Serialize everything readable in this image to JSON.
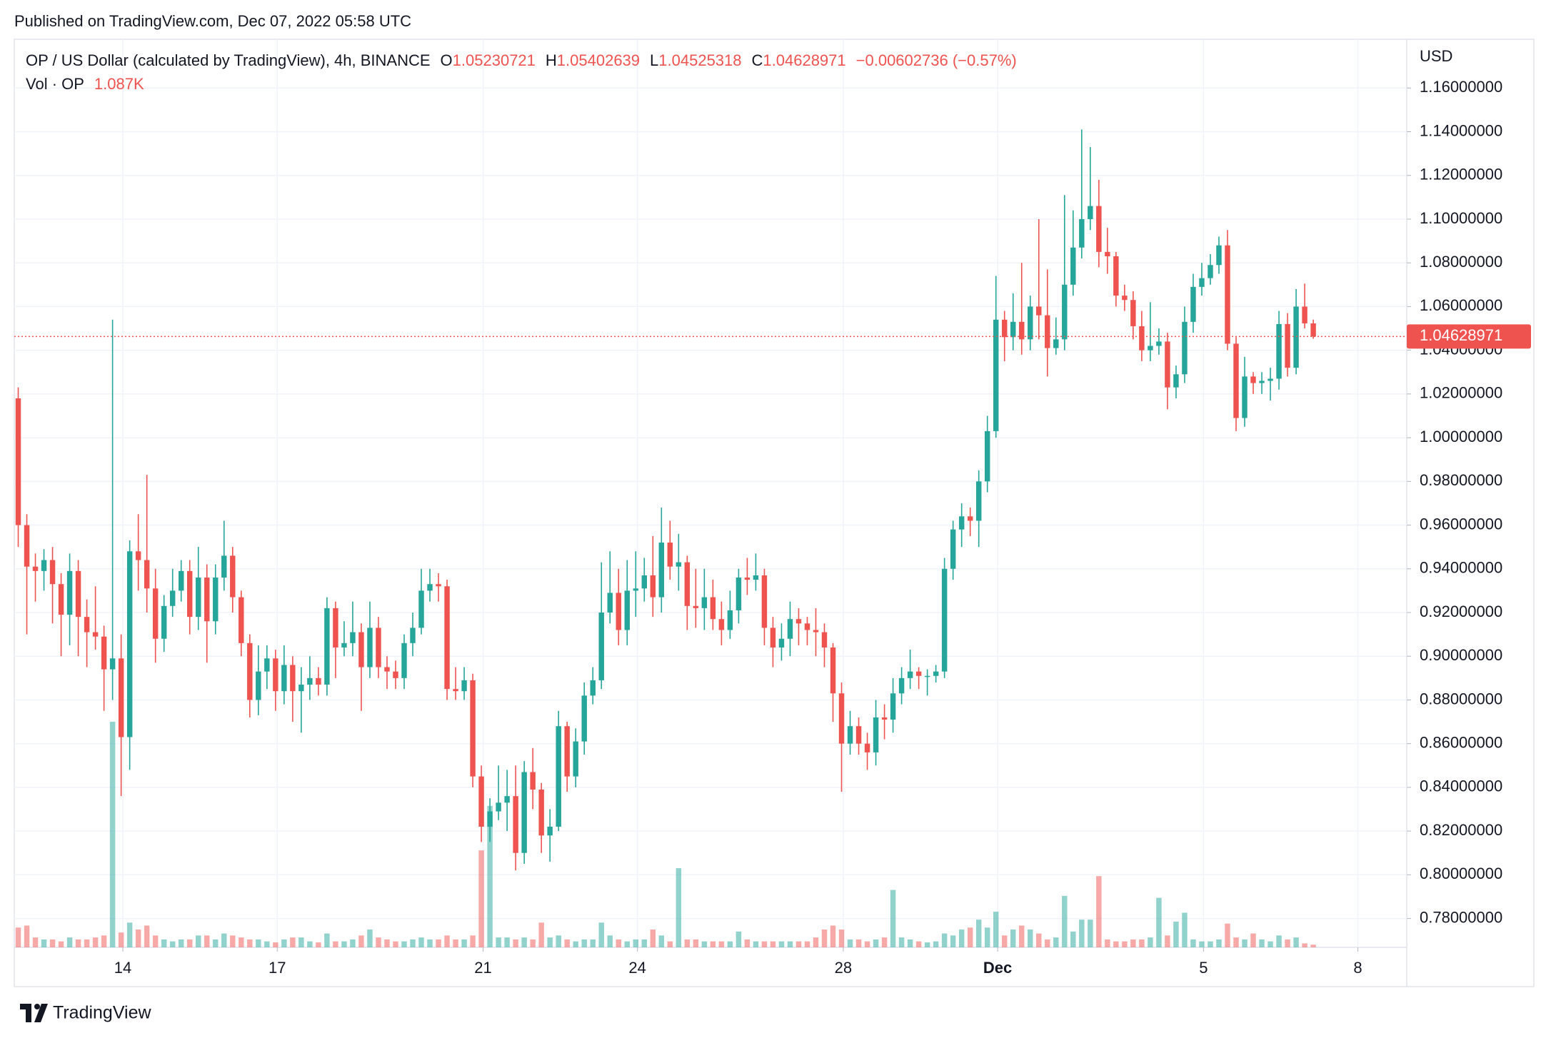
{
  "chart_data": {
    "type": "candlestick",
    "published": "Published on TradingView.com, Dec 07, 2022 05:58 UTC",
    "title": "OP / US Dollar (calculated by TradingView), 4h, BINANCE",
    "legend_keys": [
      "O",
      "H",
      "L",
      "C"
    ],
    "change_label": "−0.00602736 (−0.57%)",
    "volume_name": "Vol · OP",
    "volume_last_label": "1.087K",
    "currency": "USD",
    "brand": "TradingView",
    "up_color": "#26a69a",
    "down_color": "#ef5350",
    "grid": true,
    "xlim": [
      -0.46,
      161.9
    ],
    "xticks": [
      {
        "value": 12.2,
        "label": "14"
      },
      {
        "value": 30.2,
        "label": "17"
      },
      {
        "value": 54.2,
        "label": "21"
      },
      {
        "value": 72.2,
        "label": "24"
      },
      {
        "value": 96.2,
        "label": "28"
      },
      {
        "value": 114.2,
        "label": "Dec"
      },
      {
        "value": 138.2,
        "label": "5"
      },
      {
        "value": 156.2,
        "label": "8"
      }
    ],
    "ylim": [
      0.7668,
      1.1823
    ],
    "yticks": [
      {
        "value": 0.78,
        "label": "0.78000000"
      },
      {
        "value": 0.8,
        "label": "0.80000000"
      },
      {
        "value": 0.82,
        "label": "0.82000000"
      },
      {
        "value": 0.84,
        "label": "0.84000000"
      },
      {
        "value": 0.86,
        "label": "0.86000000"
      },
      {
        "value": 0.88,
        "label": "0.88000000"
      },
      {
        "value": 0.9,
        "label": "0.90000000"
      },
      {
        "value": 0.92,
        "label": "0.92000000"
      },
      {
        "value": 0.94,
        "label": "0.94000000"
      },
      {
        "value": 0.96,
        "label": "0.96000000"
      },
      {
        "value": 0.98,
        "label": "0.98000000"
      },
      {
        "value": 1.0,
        "label": "1.00000000"
      },
      {
        "value": 1.02,
        "label": "1.02000000"
      },
      {
        "value": 1.04,
        "label": "1.04000000"
      },
      {
        "value": 1.06,
        "label": "1.06000000"
      },
      {
        "value": 1.08,
        "label": "1.08000000"
      },
      {
        "value": 1.1,
        "label": "1.10000000"
      },
      {
        "value": 1.12,
        "label": "1.12000000"
      },
      {
        "value": 1.14,
        "label": "1.14000000"
      },
      {
        "value": 1.16,
        "label": "1.16000000"
      }
    ],
    "open": [
      1.018,
      0.96,
      0.941,
      0.939,
      0.944,
      0.933,
      0.919,
      0.939,
      0.918,
      0.911,
      0.909,
      0.894,
      0.899,
      0.863,
      0.948,
      0.944,
      0.931,
      0.908,
      0.923,
      0.93,
      0.939,
      0.918,
      0.936,
      0.916,
      0.936,
      0.946,
      0.927,
      0.906,
      0.88,
      0.893,
      0.899,
      0.884,
      0.896,
      0.884,
      0.887,
      0.89,
      0.887,
      0.922,
      0.904,
      0.906,
      0.911,
      0.895,
      0.913,
      0.895,
      0.893,
      0.89,
      0.906,
      0.913,
      0.93,
      0.933,
      0.932,
      0.885,
      0.884,
      0.889,
      0.845,
      0.822,
      0.829,
      0.833,
      0.836,
      0.81,
      0.847,
      0.839,
      0.818,
      0.822,
      0.868,
      0.845,
      0.861,
      0.882,
      0.889,
      0.92,
      0.929,
      0.912,
      0.93,
      0.931,
      0.937,
      0.927,
      0.952,
      0.941,
      0.943,
      0.923,
      0.922,
      0.927,
      0.917,
      0.912,
      0.921,
      0.936,
      0.935,
      0.937,
      0.913,
      0.904,
      0.908,
      0.917,
      0.915,
      0.912,
      0.911,
      0.904,
      0.883,
      0.86,
      0.868,
      0.86,
      0.856,
      0.872,
      0.871,
      0.883,
      0.89,
      0.893,
      0.891,
      0.891,
      0.893,
      0.94,
      0.958,
      0.964,
      0.962,
      0.98,
      1.003,
      1.054,
      1.046,
      1.053,
      1.045,
      1.06,
      1.056,
      1.041,
      1.045,
      1.07,
      1.087,
      1.1,
      1.106,
      1.085,
      1.083,
      1.065,
      1.063,
      1.051,
      1.04,
      1.042,
      1.044,
      1.023,
      1.029,
      1.053,
      1.069,
      1.073,
      1.079,
      1.088,
      1.043,
      1.009,
      1.028,
      1.025,
      1.026,
      1.027,
      1.052,
      1.032,
      1.06,
      1.05230721
    ],
    "high": [
      1.023,
      0.965,
      0.947,
      0.949,
      0.95,
      0.938,
      0.947,
      0.944,
      0.926,
      0.932,
      0.914,
      1.054,
      0.91,
      0.953,
      0.965,
      0.983,
      0.94,
      0.928,
      0.94,
      0.944,
      0.944,
      0.95,
      0.942,
      0.942,
      0.962,
      0.95,
      0.93,
      0.91,
      0.905,
      0.905,
      0.903,
      0.905,
      0.9,
      0.895,
      0.9,
      0.895,
      0.927,
      0.925,
      0.916,
      0.925,
      0.915,
      0.925,
      0.918,
      0.9,
      0.898,
      0.91,
      0.92,
      0.94,
      0.94,
      0.938,
      0.935,
      0.895,
      0.895,
      0.892,
      0.85,
      0.835,
      0.85,
      0.848,
      0.85,
      0.852,
      0.858,
      0.842,
      0.83,
      0.875,
      0.87,
      0.867,
      0.888,
      0.895,
      0.943,
      0.948,
      0.94,
      0.944,
      0.948,
      0.945,
      0.955,
      0.968,
      0.962,
      0.956,
      0.946,
      0.94,
      0.94,
      0.935,
      0.925,
      0.93,
      0.94,
      0.945,
      0.947,
      0.94,
      0.918,
      0.915,
      0.925,
      0.922,
      0.918,
      0.922,
      0.915,
      0.906,
      0.888,
      0.875,
      0.872,
      0.865,
      0.88,
      0.878,
      0.89,
      0.895,
      0.903,
      0.895,
      0.894,
      0.896,
      0.945,
      0.962,
      0.97,
      0.968,
      0.985,
      1.01,
      1.074,
      1.058,
      1.066,
      1.08,
      1.065,
      1.1,
      1.077,
      1.055,
      1.111,
      1.104,
      1.141,
      1.133,
      1.118,
      1.096,
      1.085,
      1.07,
      1.067,
      1.058,
      1.062,
      1.05,
      1.048,
      1.033,
      1.06,
      1.075,
      1.08,
      1.084,
      1.092,
      1.095,
      1.046,
      1.037,
      1.03,
      1.03,
      1.032,
      1.058,
      1.057,
      1.068,
      1.0705,
      1.05402639
    ],
    "low": [
      0.95,
      0.91,
      0.925,
      0.93,
      0.915,
      0.9,
      0.905,
      0.9,
      0.895,
      0.903,
      0.875,
      0.88,
      0.836,
      0.848,
      0.93,
      0.92,
      0.897,
      0.902,
      0.918,
      0.925,
      0.91,
      0.912,
      0.897,
      0.91,
      0.93,
      0.92,
      0.9,
      0.872,
      0.873,
      0.885,
      0.875,
      0.878,
      0.87,
      0.865,
      0.88,
      0.882,
      0.882,
      0.89,
      0.9,
      0.9,
      0.875,
      0.89,
      0.89,
      0.885,
      0.885,
      0.885,
      0.9,
      0.91,
      0.925,
      0.925,
      0.88,
      0.88,
      0.88,
      0.84,
      0.815,
      0.815,
      0.825,
      0.82,
      0.802,
      0.805,
      0.83,
      0.81,
      0.806,
      0.82,
      0.838,
      0.84,
      0.855,
      0.878,
      0.885,
      0.915,
      0.905,
      0.905,
      0.918,
      0.925,
      0.918,
      0.92,
      0.935,
      0.93,
      0.912,
      0.913,
      0.912,
      0.912,
      0.905,
      0.908,
      0.915,
      0.928,
      0.93,
      0.905,
      0.895,
      0.898,
      0.9,
      0.905,
      0.905,
      0.9,
      0.895,
      0.87,
      0.838,
      0.855,
      0.855,
      0.848,
      0.85,
      0.862,
      0.865,
      0.878,
      0.885,
      0.885,
      0.882,
      0.888,
      0.89,
      0.935,
      0.95,
      0.955,
      0.95,
      0.975,
      1.0,
      1.035,
      1.04,
      1.038,
      1.04,
      1.045,
      1.028,
      1.038,
      1.04,
      1.065,
      1.082,
      1.095,
      1.078,
      1.075,
      1.06,
      1.058,
      1.045,
      1.035,
      1.035,
      1.038,
      1.013,
      1.018,
      1.025,
      1.048,
      1.065,
      1.07,
      1.075,
      1.04,
      1.003,
      1.005,
      1.02,
      1.02,
      1.017,
      1.022,
      1.028,
      1.029,
      1.05,
      1.04525318
    ],
    "close": [
      0.96,
      0.941,
      0.939,
      0.944,
      0.933,
      0.919,
      0.939,
      0.918,
      0.911,
      0.909,
      0.894,
      0.899,
      0.863,
      0.948,
      0.944,
      0.931,
      0.908,
      0.923,
      0.93,
      0.939,
      0.918,
      0.936,
      0.916,
      0.936,
      0.946,
      0.927,
      0.906,
      0.88,
      0.893,
      0.899,
      0.884,
      0.896,
      0.884,
      0.887,
      0.89,
      0.887,
      0.922,
      0.904,
      0.906,
      0.911,
      0.895,
      0.913,
      0.895,
      0.893,
      0.89,
      0.906,
      0.913,
      0.93,
      0.933,
      0.932,
      0.885,
      0.884,
      0.889,
      0.845,
      0.822,
      0.829,
      0.833,
      0.836,
      0.81,
      0.847,
      0.839,
      0.818,
      0.822,
      0.868,
      0.845,
      0.861,
      0.882,
      0.889,
      0.92,
      0.929,
      0.912,
      0.93,
      0.931,
      0.937,
      0.927,
      0.952,
      0.941,
      0.943,
      0.923,
      0.922,
      0.927,
      0.917,
      0.912,
      0.921,
      0.936,
      0.935,
      0.937,
      0.913,
      0.904,
      0.908,
      0.917,
      0.915,
      0.912,
      0.911,
      0.904,
      0.883,
      0.86,
      0.868,
      0.86,
      0.856,
      0.872,
      0.871,
      0.883,
      0.89,
      0.893,
      0.891,
      0.891,
      0.893,
      0.94,
      0.958,
      0.964,
      0.962,
      0.98,
      1.003,
      1.054,
      1.046,
      1.053,
      1.045,
      1.06,
      1.056,
      1.041,
      1.045,
      1.07,
      1.087,
      1.1,
      1.106,
      1.085,
      1.083,
      1.065,
      1.063,
      1.051,
      1.04,
      1.042,
      1.044,
      1.023,
      1.029,
      1.053,
      1.069,
      1.073,
      1.079,
      1.088,
      1.043,
      1.009,
      1.028,
      1.025,
      1.026,
      1.027,
      1.052,
      1.032,
      1.06,
      1.0523,
      1.04628971
    ],
    "volume": [
      8000,
      8800,
      4000,
      3200,
      3200,
      2400,
      4000,
      3200,
      3200,
      4000,
      4800,
      91200,
      6000,
      10000,
      7200,
      8800,
      4800,
      3200,
      2400,
      3200,
      3200,
      4800,
      4800,
      3200,
      5600,
      4800,
      4000,
      3200,
      3200,
      2400,
      2000,
      3200,
      4000,
      4000,
      2400,
      2000,
      5600,
      2400,
      2400,
      3200,
      4800,
      7200,
      4000,
      3200,
      2400,
      2400,
      3200,
      4000,
      3200,
      3200,
      4800,
      3200,
      3200,
      4800,
      39200,
      57200,
      4000,
      4000,
      3200,
      4000,
      3200,
      10000,
      4000,
      4800,
      3200,
      2400,
      3200,
      3200,
      10000,
      4800,
      3200,
      2400,
      3200,
      3200,
      7200,
      4800,
      2400,
      32000,
      3200,
      3200,
      2400,
      2400,
      2400,
      2400,
      6400,
      3200,
      2400,
      2400,
      2400,
      2400,
      2400,
      2400,
      2400,
      4000,
      7200,
      8800,
      7200,
      3200,
      3200,
      2400,
      3200,
      4000,
      23200,
      4000,
      3200,
      2400,
      2000,
      2400,
      5600,
      4800,
      7200,
      8000,
      11200,
      8000,
      14400,
      4800,
      7200,
      8800,
      7200,
      5600,
      3200,
      4000,
      20800,
      6400,
      11200,
      11200,
      28800,
      3200,
      2400,
      2400,
      3200,
      3200,
      4000,
      20000,
      4800,
      10400,
      14000,
      3200,
      2400,
      2400,
      3200,
      9600,
      4000,
      3200,
      5600,
      3200,
      2400,
      4800,
      3200,
      4000,
      1600,
      1087
    ]
  }
}
